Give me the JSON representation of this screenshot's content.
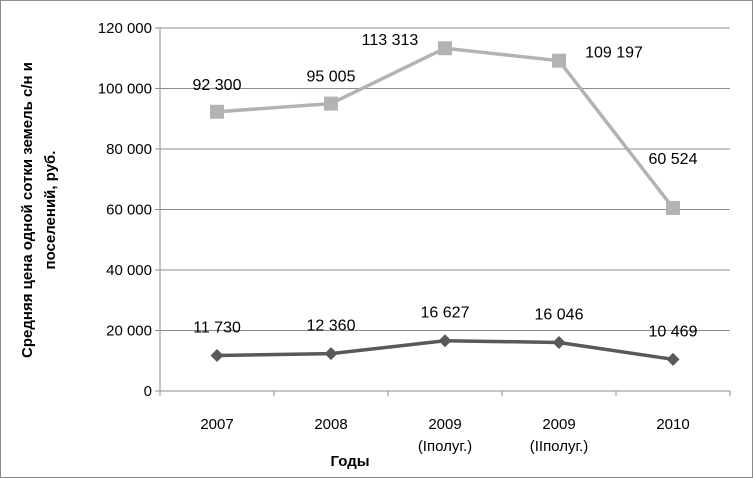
{
  "chart_data": {
    "type": "line",
    "categories": [
      {
        "line1": "2007",
        "line2": ""
      },
      {
        "line1": "2008",
        "line2": ""
      },
      {
        "line1": "2009",
        "line2": "(Iполуг.)"
      },
      {
        "line1": "2009",
        "line2": "(IIполуг.)"
      },
      {
        "line1": "2010",
        "line2": ""
      }
    ],
    "series": [
      {
        "values": [
          92300,
          95005,
          113313,
          109197,
          60524
        ],
        "labels": [
          "92 300",
          "95 005",
          "113 313",
          "109 197",
          "60 524"
        ],
        "marker": "square",
        "color": "#b3b3b3"
      },
      {
        "values": [
          11730,
          12360,
          16627,
          16046,
          10469
        ],
        "labels": [
          "11 730",
          "12 360",
          "16 627",
          "16 046",
          "10 469"
        ],
        "marker": "diamond",
        "color": "#595959"
      }
    ],
    "xlabel": "Годы",
    "ylabel_lines": [
      "Средняя цена одной сотки земель с/н и",
      "поселений, руб."
    ],
    "ylim": [
      0,
      120000
    ],
    "yticks": [
      0,
      20000,
      40000,
      60000,
      80000,
      100000,
      120000
    ],
    "ytick_labels": [
      "0",
      "20 000",
      "40 000",
      "60 000",
      "80 000",
      "100 000",
      "120 000"
    ],
    "grid": true,
    "legend": "none"
  }
}
